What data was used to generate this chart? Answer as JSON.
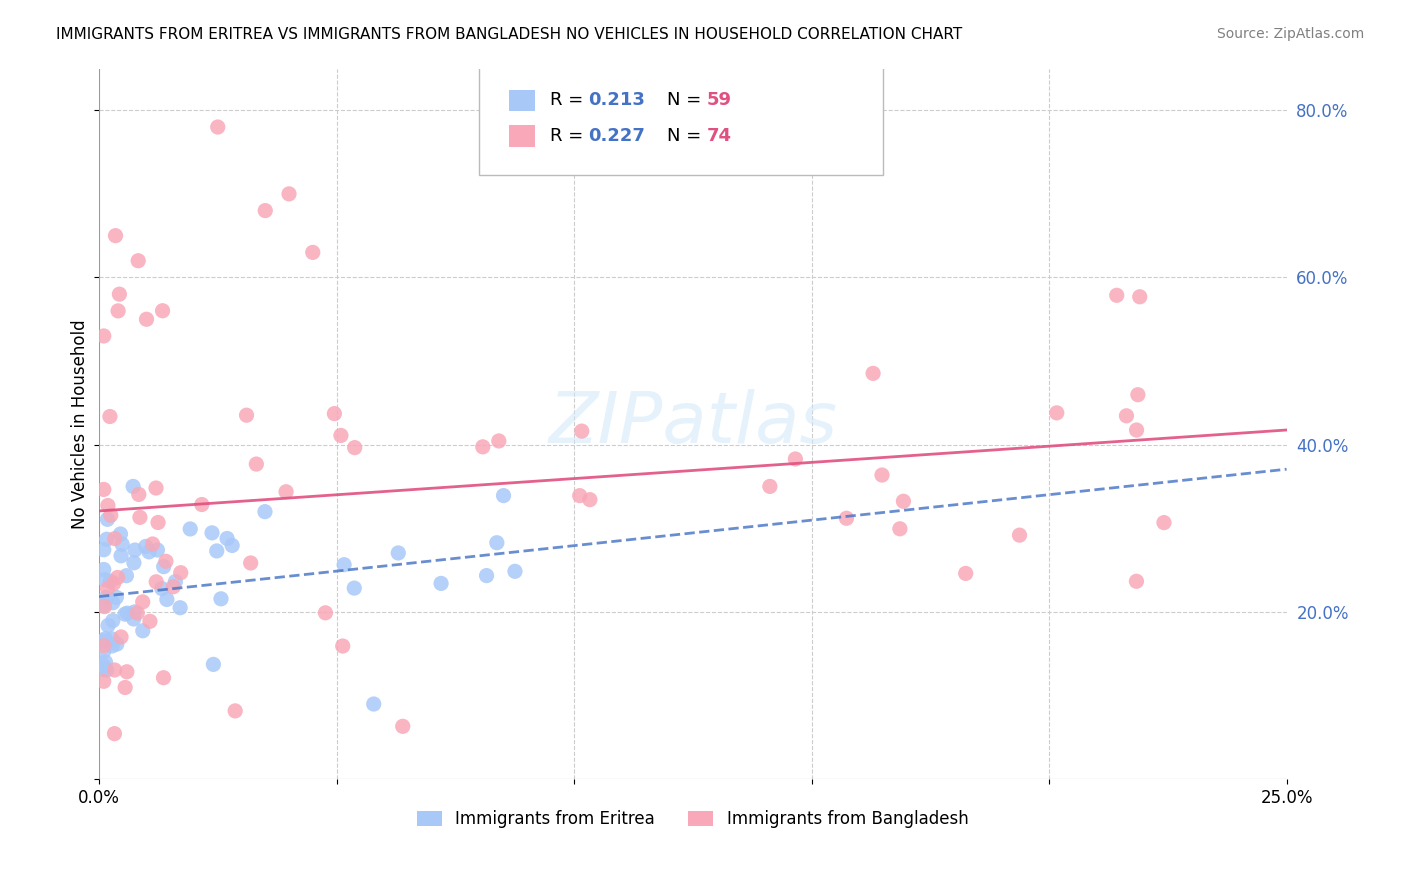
{
  "title": "IMMIGRANTS FROM ERITREA VS IMMIGRANTS FROM BANGLADESH NO VEHICLES IN HOUSEHOLD CORRELATION CHART",
  "source": "Source: ZipAtlas.com",
  "ylabel": "No Vehicles in Household",
  "xlim": [
    0.0,
    0.25
  ],
  "ylim": [
    0.0,
    0.85
  ],
  "color_eritrea": "#a8c8f8",
  "color_bangladesh": "#f8a8b8",
  "color_line_eritrea": "#4472c4",
  "color_line_bangladesh": "#e05080",
  "color_r_value": "#4472c4",
  "color_n_value": "#e05080",
  "watermark_zip": "ZIP",
  "watermark_atlas": "atlas",
  "legend_label1": "Immigrants from Eritrea",
  "legend_label2": "Immigrants from Bangladesh",
  "r1": "0.213",
  "n1": "59",
  "r2": "0.227",
  "n2": "74"
}
